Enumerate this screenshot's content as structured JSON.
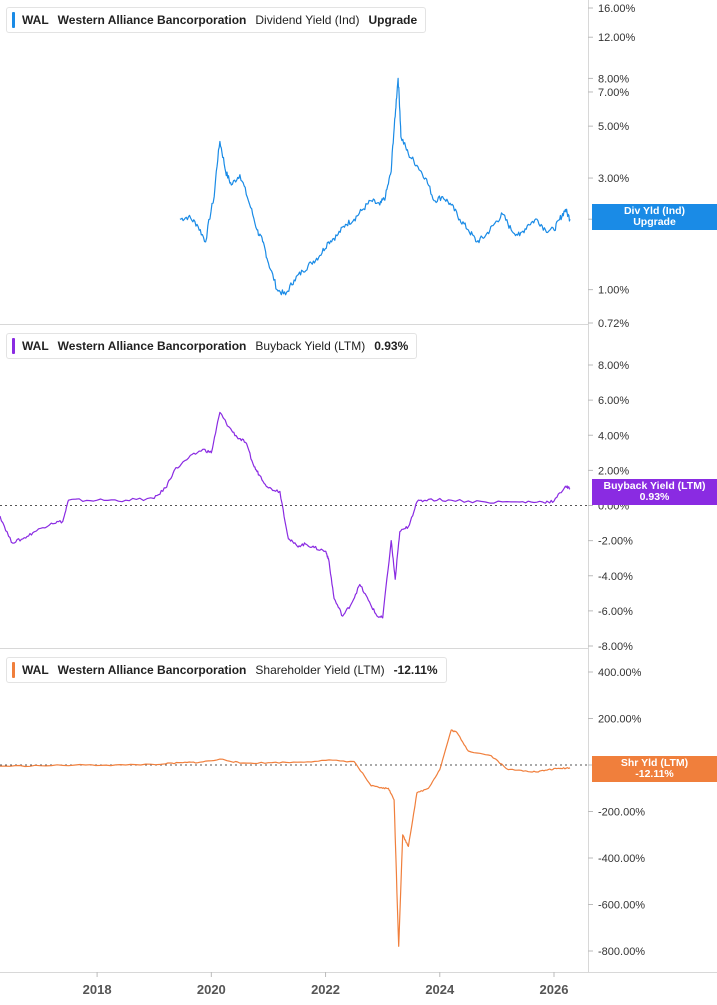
{
  "panels": [
    {
      "ticker": "WAL",
      "company": "Western Alliance Bancorporation",
      "metric": "Dividend Yield (Ind)",
      "value": "Upgrade",
      "color": "#1a8be6",
      "tag_line1": "Div Yld (Ind)",
      "tag_line2": "Upgrade",
      "axis_labels": [
        "16.00%",
        "12.00%",
        "8.00%",
        "7.00%",
        "5.00%",
        "3.00%",
        "2.00%",
        "1.00%",
        "0.72%"
      ]
    },
    {
      "ticker": "WAL",
      "company": "Western Alliance Bancorporation",
      "metric": "Buyback Yield (LTM)",
      "value": "0.93%",
      "color": "#8a2be2",
      "tag_line1": "Buyback Yield (LTM)",
      "tag_line2": "0.93%",
      "axis_labels": [
        "8.00%",
        "6.00%",
        "4.00%",
        "2.00%",
        "0.00%",
        "-2.00%",
        "-4.00%",
        "-6.00%",
        "-8.00%"
      ]
    },
    {
      "ticker": "WAL",
      "company": "Western Alliance Bancorporation",
      "metric": "Shareholder Yield (LTM)",
      "value": "-12.11%",
      "color": "#f07f3c",
      "tag_line1": "Shr Yld (LTM)",
      "tag_line2": "-12.11%",
      "axis_labels": [
        "400.00%",
        "200.00%",
        "0.00%",
        "-200.00%",
        "-400.00%",
        "-600.00%",
        "-800.00%"
      ]
    }
  ],
  "x_axis_labels": [
    "2018",
    "2020",
    "2022",
    "2024",
    "2026"
  ],
  "chart_data": [
    {
      "type": "line",
      "y_scale": "log",
      "ylim": [
        0.72,
        16.0
      ],
      "yticks": [
        16,
        12,
        8,
        7,
        5,
        3,
        2,
        1,
        0.72
      ],
      "x": [
        2019.45,
        2019.6,
        2019.75,
        2019.9,
        2020.05,
        2020.15,
        2020.25,
        2020.35,
        2020.5,
        2020.65,
        2020.8,
        2020.9,
        2021.0,
        2021.15,
        2021.3,
        2021.45,
        2021.6,
        2021.75,
        2021.9,
        2022.05,
        2022.2,
        2022.35,
        2022.5,
        2022.65,
        2022.8,
        2022.95,
        2023.05,
        2023.15,
        2023.22,
        2023.27,
        2023.32,
        2023.45,
        2023.6,
        2023.75,
        2023.9,
        2024.05,
        2024.2,
        2024.35,
        2024.5,
        2024.65,
        2024.8,
        2024.95,
        2025.1,
        2025.25,
        2025.4,
        2025.55,
        2025.7,
        2025.85,
        2026.0,
        2026.1,
        2026.2,
        2026.28
      ],
      "series": [
        {
          "values": [
            2.0,
            2.05,
            1.9,
            1.6,
            2.5,
            4.3,
            3.2,
            2.8,
            3.1,
            2.4,
            1.8,
            1.6,
            1.3,
            1.0,
            0.95,
            1.1,
            1.2,
            1.3,
            1.4,
            1.6,
            1.7,
            1.9,
            2.0,
            2.2,
            2.4,
            2.3,
            2.5,
            3.2,
            5.5,
            8.0,
            4.5,
            3.8,
            3.4,
            3.0,
            2.4,
            2.5,
            2.3,
            2.0,
            1.8,
            1.6,
            1.7,
            1.9,
            2.1,
            1.8,
            1.7,
            1.9,
            2.0,
            1.8,
            1.8,
            2.0,
            2.2,
            2.0
          ]
        }
      ]
    },
    {
      "type": "line",
      "ylim": [
        -8.0,
        8.0
      ],
      "yticks": [
        8,
        6,
        4,
        2,
        0,
        -2,
        -4,
        -6,
        -8
      ],
      "x": [
        2016.3,
        2016.5,
        2016.7,
        2016.9,
        2017.2,
        2017.4,
        2017.5,
        2018.0,
        2018.5,
        2019.0,
        2019.2,
        2019.35,
        2019.6,
        2019.85,
        2020.0,
        2020.15,
        2020.3,
        2020.45,
        2020.6,
        2020.75,
        2020.85,
        2021.0,
        2021.2,
        2021.35,
        2021.5,
        2021.65,
        2021.8,
        2022.0,
        2022.05,
        2022.15,
        2022.3,
        2022.45,
        2022.6,
        2022.75,
        2022.9,
        2023.0,
        2023.15,
        2023.22,
        2023.3,
        2023.45,
        2023.6,
        2023.8,
        2024.2,
        2024.8,
        2025.4,
        2025.8,
        2026.0,
        2026.2,
        2026.28
      ],
      "series": [
        {
          "values": [
            -0.6,
            -2.1,
            -1.9,
            -1.5,
            -1.0,
            -0.9,
            0.3,
            0.3,
            0.3,
            0.4,
            1.0,
            2.0,
            2.7,
            3.2,
            3.0,
            5.3,
            4.5,
            3.9,
            3.6,
            2.2,
            1.7,
            1.0,
            0.8,
            -1.9,
            -2.3,
            -2.2,
            -2.4,
            -2.6,
            -3.0,
            -5.3,
            -6.3,
            -5.6,
            -4.5,
            -5.4,
            -6.3,
            -6.4,
            -2.0,
            -4.2,
            -1.5,
            -1.2,
            0.2,
            0.35,
            0.3,
            0.2,
            0.2,
            0.2,
            0.25,
            1.1,
            0.93
          ]
        }
      ]
    },
    {
      "type": "line",
      "ylim": [
        -830.0,
        420.0
      ],
      "yticks": [
        400,
        200,
        0,
        -200,
        -400,
        -600,
        -800
      ],
      "x": [
        2016.3,
        2017.0,
        2017.8,
        2018.5,
        2019.2,
        2019.5,
        2019.8,
        2020.2,
        2020.5,
        2021.0,
        2021.5,
        2022.0,
        2022.5,
        2022.8,
        2023.0,
        2023.1,
        2023.2,
        2023.28,
        2023.35,
        2023.45,
        2023.6,
        2023.8,
        2024.0,
        2024.2,
        2024.3,
        2024.5,
        2024.9,
        2025.2,
        2025.5,
        2025.7,
        2025.9,
        2026.1,
        2026.28
      ],
      "series": [
        {
          "values": [
            -5,
            -3,
            0,
            0,
            5,
            10,
            12,
            25,
            8,
            10,
            12,
            20,
            15,
            -90,
            -100,
            -100,
            -150,
            -780,
            -300,
            -350,
            -120,
            -100,
            -20,
            150,
            140,
            60,
            40,
            -20,
            -25,
            -30,
            -20,
            -15,
            -12.11
          ]
        }
      ]
    }
  ]
}
